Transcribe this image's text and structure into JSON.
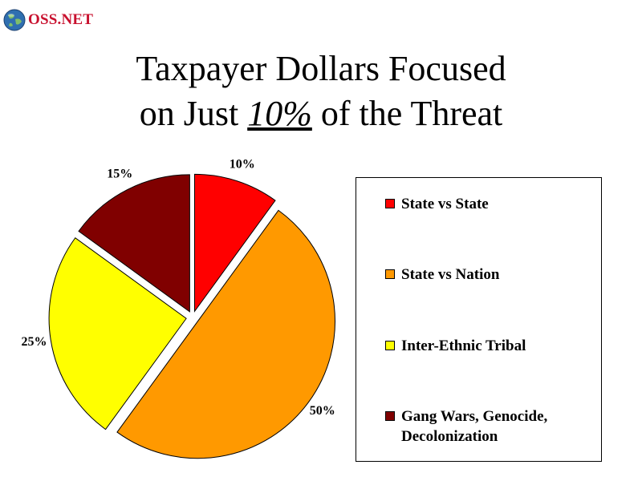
{
  "logo": {
    "text": "OSS.NET",
    "icon": "globe-icon"
  },
  "title": {
    "line1": "Taxpayer Dollars Focused",
    "line2_before": "on Just ",
    "line2_emphasis": "10%",
    "line2_after": " of the Threat"
  },
  "chart_data": {
    "type": "pie",
    "title": "Taxpayer Dollars Focused on Just 10% of the Threat",
    "start": "12 o'clock, clockwise",
    "exploded": true,
    "legend_position": "right",
    "slices": [
      {
        "name": "State vs State",
        "value": 10,
        "label": "10%",
        "color": "#ff0000"
      },
      {
        "name": "State vs Nation",
        "value": 50,
        "label": "50%",
        "color": "#ff9900"
      },
      {
        "name": "Inter-Ethnic Tribal",
        "value": 25,
        "label": "25%",
        "color": "#ffff00"
      },
      {
        "name": "Gang Wars, Genocide, Decolonization",
        "value": 15,
        "label": "15%",
        "color": "#800000"
      }
    ]
  }
}
